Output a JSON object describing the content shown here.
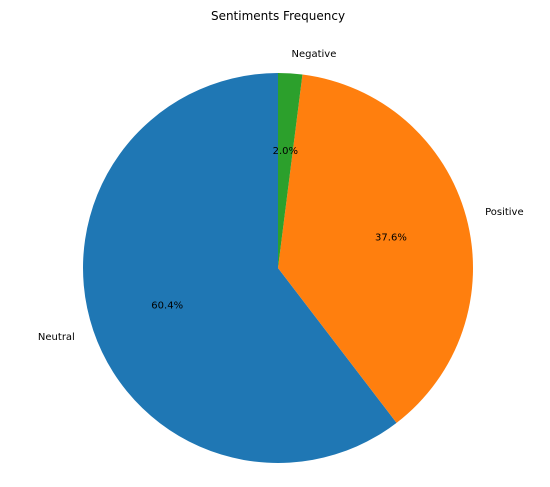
{
  "chart_data": {
    "type": "pie",
    "title": "Sentiments Frequency",
    "slices": [
      {
        "label": "Neutral",
        "value": 60.4,
        "pct_text": "60.4%",
        "color": "#1f77b4"
      },
      {
        "label": "Positive",
        "value": 37.6,
        "pct_text": "37.6%",
        "color": "#ff7f0e"
      },
      {
        "label": "Negative",
        "value": 2.0,
        "pct_text": "2.0%",
        "color": "#2ca02c"
      }
    ],
    "start_angle_deg": 90,
    "direction": "counterclockwise"
  }
}
